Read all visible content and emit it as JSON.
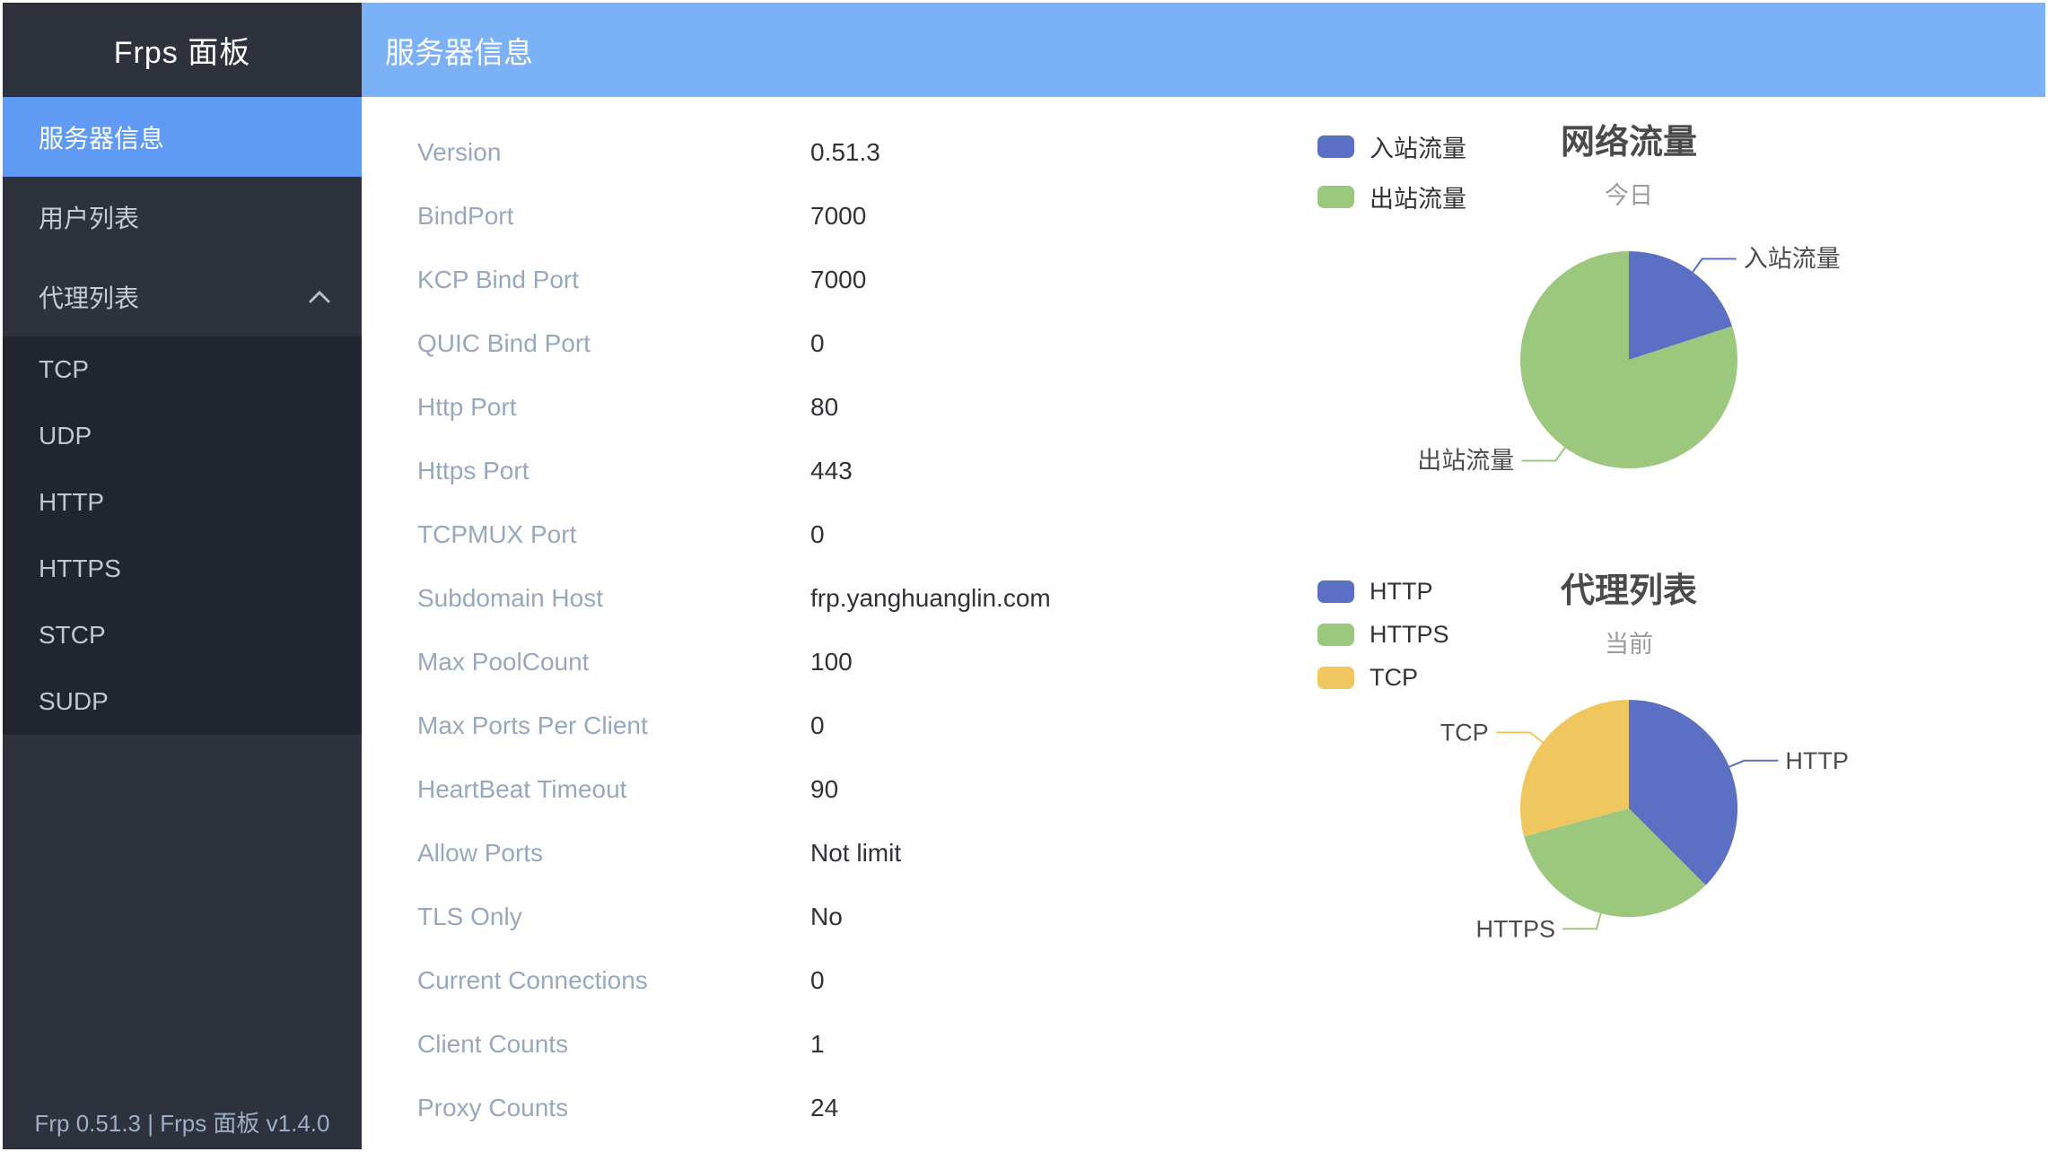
{
  "sidebar": {
    "title": "Frps 面板",
    "items": [
      {
        "label": "服务器信息",
        "active": true
      },
      {
        "label": "用户列表",
        "active": false
      },
      {
        "label": "代理列表",
        "active": false,
        "expanded": true,
        "children": [
          "TCP",
          "UDP",
          "HTTP",
          "HTTPS",
          "STCP",
          "SUDP"
        ]
      }
    ],
    "footer": "Frp 0.51.3 | Frps 面板 v1.4.0"
  },
  "header": {
    "title": "服务器信息"
  },
  "server_info": {
    "rows": [
      {
        "label": "Version",
        "value": "0.51.3"
      },
      {
        "label": "BindPort",
        "value": "7000"
      },
      {
        "label": "KCP Bind Port",
        "value": "7000"
      },
      {
        "label": "QUIC Bind Port",
        "value": "0"
      },
      {
        "label": "Http Port",
        "value": "80"
      },
      {
        "label": "Https Port",
        "value": "443"
      },
      {
        "label": "TCPMUX Port",
        "value": "0"
      },
      {
        "label": "Subdomain Host",
        "value": "frp.yanghuanglin.com"
      },
      {
        "label": "Max PoolCount",
        "value": "100"
      },
      {
        "label": "Max Ports Per Client",
        "value": "0"
      },
      {
        "label": "HeartBeat Timeout",
        "value": "90"
      },
      {
        "label": "Allow Ports",
        "value": "Not limit"
      },
      {
        "label": "TLS Only",
        "value": "No"
      },
      {
        "label": "Current Connections",
        "value": "0"
      },
      {
        "label": "Client Counts",
        "value": "1"
      },
      {
        "label": "Proxy Counts",
        "value": "24"
      }
    ]
  },
  "chart_data": [
    {
      "type": "pie",
      "title": "网络流量",
      "subtitle": "今日",
      "legend_position": "top-left",
      "legend": [
        "入站流量",
        "出站流量"
      ],
      "slices": [
        {
          "name": "入站流量",
          "value": 20,
          "color": "#5b70c5"
        },
        {
          "name": "出站流量",
          "value": 80,
          "color": "#9cc87d"
        }
      ],
      "values_are": "estimated percent of pie arc; no numeric labels shown"
    },
    {
      "type": "pie",
      "title": "代理列表",
      "subtitle": "当前",
      "legend_position": "top-left",
      "legend": [
        "HTTP",
        "HTTPS",
        "TCP"
      ],
      "slices": [
        {
          "name": "HTTP",
          "value": 9,
          "color": "#5b70c5"
        },
        {
          "name": "HTTPS",
          "value": 8,
          "color": "#9cc87d"
        },
        {
          "name": "TCP",
          "value": 7,
          "color": "#f0c75f"
        }
      ],
      "values_are": "counts estimated from arc angles; sum matches Proxy Counts 24"
    }
  ],
  "colors": {
    "header_bg": "#7ab1f7",
    "sidebar_bg": "#2d323d",
    "submenu_bg": "#21252e",
    "active_item_bg": "#5f9bf5",
    "label_text": "#97a8be",
    "value_text": "#2f3236"
  }
}
